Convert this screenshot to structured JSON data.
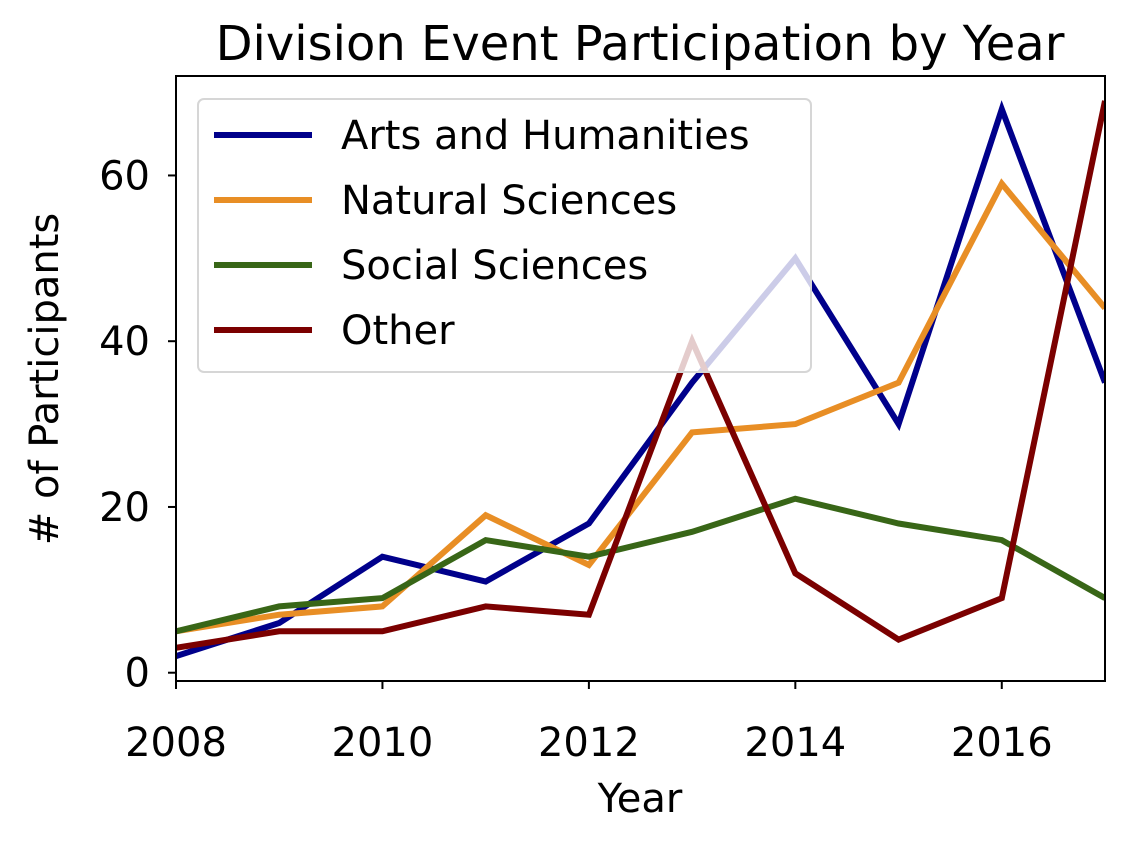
{
  "chart_data": {
    "type": "line",
    "title": "Division Event Participation by Year",
    "xlabel": "Year",
    "ylabel": "# of Participants",
    "x": [
      2008,
      2009,
      2010,
      2011,
      2012,
      2013,
      2014,
      2015,
      2016,
      2017
    ],
    "xlim": [
      2008,
      2017
    ],
    "ylim": [
      -1,
      72
    ],
    "xticks": [
      2008,
      2010,
      2012,
      2014,
      2016
    ],
    "yticks": [
      0,
      20,
      40,
      60
    ],
    "grid": false,
    "legend_position": "top-left",
    "series": [
      {
        "name": "Arts and Humanities",
        "color": "#00008b",
        "values": [
          2,
          6,
          14,
          11,
          18,
          35,
          50,
          30,
          68,
          35
        ]
      },
      {
        "name": "Natural Sciences",
        "color": "#e88e25",
        "values": [
          5,
          7,
          8,
          19,
          13,
          29,
          30,
          35,
          59,
          44
        ]
      },
      {
        "name": "Social Sciences",
        "color": "#386617",
        "values": [
          5,
          8,
          9,
          16,
          14,
          17,
          21,
          18,
          16,
          9
        ]
      },
      {
        "name": "Other",
        "color": "#7b0000",
        "values": [
          3,
          5,
          5,
          8,
          7,
          40,
          12,
          4,
          9,
          69
        ]
      }
    ]
  }
}
